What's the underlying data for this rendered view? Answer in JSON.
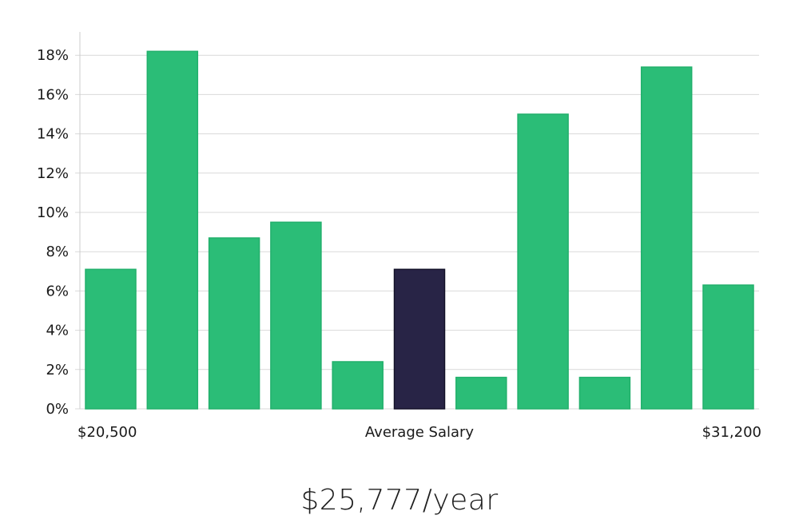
{
  "chart_data": {
    "type": "bar",
    "categories": [
      "1",
      "2",
      "3",
      "4",
      "5",
      "6",
      "7",
      "8",
      "9",
      "10",
      "11"
    ],
    "values": [
      7.1,
      18.2,
      8.7,
      9.5,
      2.4,
      7.1,
      1.6,
      15.0,
      1.6,
      17.4,
      6.3
    ],
    "highlight_index": 5,
    "ylim": [
      0,
      19
    ],
    "yticks": [
      0,
      2,
      4,
      6,
      8,
      10,
      12,
      14,
      16,
      18
    ],
    "ytick_suffix": "%",
    "grid": true,
    "x_labels": {
      "left": "$20,500",
      "center": "Average Salary",
      "right": "$31,200"
    },
    "colors": {
      "bar": "#2bbd77",
      "bar_stroke": "#22b06c",
      "highlight": "#282446",
      "highlight_stroke": "#141229",
      "grid": "#d9d9d9",
      "axis": "#cccccc"
    }
  },
  "summary": {
    "salary": "$25,777/year"
  }
}
